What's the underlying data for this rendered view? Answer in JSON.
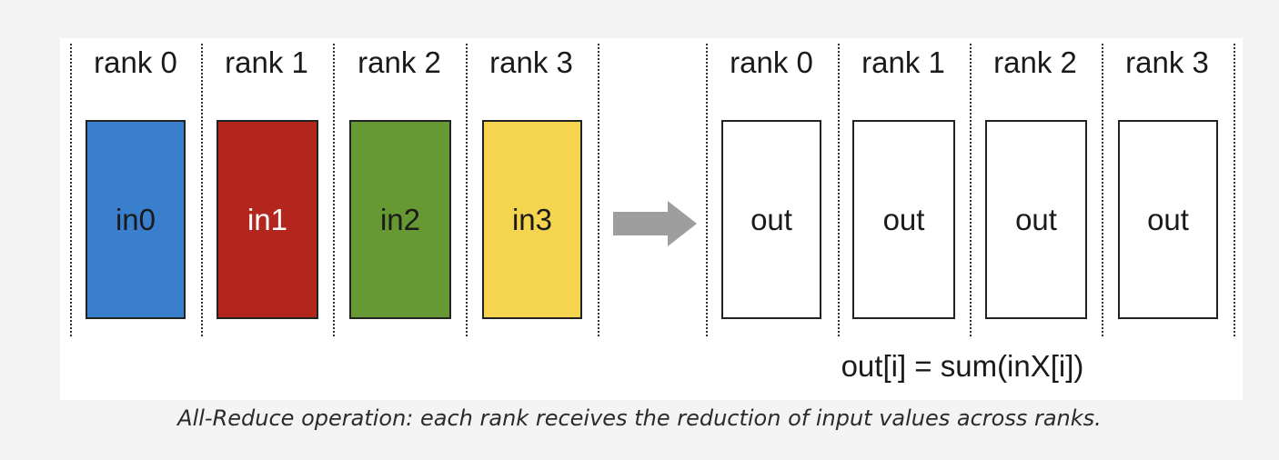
{
  "diagram": {
    "input_ranks": [
      {
        "label": "rank 0",
        "buffer": "in0",
        "fill": "#3a7fcd",
        "text_color": "#1a1a1a"
      },
      {
        "label": "rank 1",
        "buffer": "in1",
        "fill": "#b3261e",
        "text_color": "#ffffff"
      },
      {
        "label": "rank 2",
        "buffer": "in2",
        "fill": "#669933",
        "text_color": "#1a1a1a"
      },
      {
        "label": "rank 3",
        "buffer": "in3",
        "fill": "#f5d44f",
        "text_color": "#1a1a1a"
      }
    ],
    "output_ranks": [
      {
        "label": "rank 0",
        "buffer": "out",
        "fill": "#ffffff",
        "text_color": "#1a1a1a"
      },
      {
        "label": "rank 1",
        "buffer": "out",
        "fill": "#ffffff",
        "text_color": "#1a1a1a"
      },
      {
        "label": "rank 2",
        "buffer": "out",
        "fill": "#ffffff",
        "text_color": "#1a1a1a"
      },
      {
        "label": "rank 3",
        "buffer": "out",
        "fill": "#ffffff",
        "text_color": "#1a1a1a"
      }
    ],
    "arrow_color": "#9e9e9e",
    "formula": "out[i] = sum(inX[i])"
  },
  "caption": "All-Reduce operation: each rank receives the reduction of input values across ranks."
}
